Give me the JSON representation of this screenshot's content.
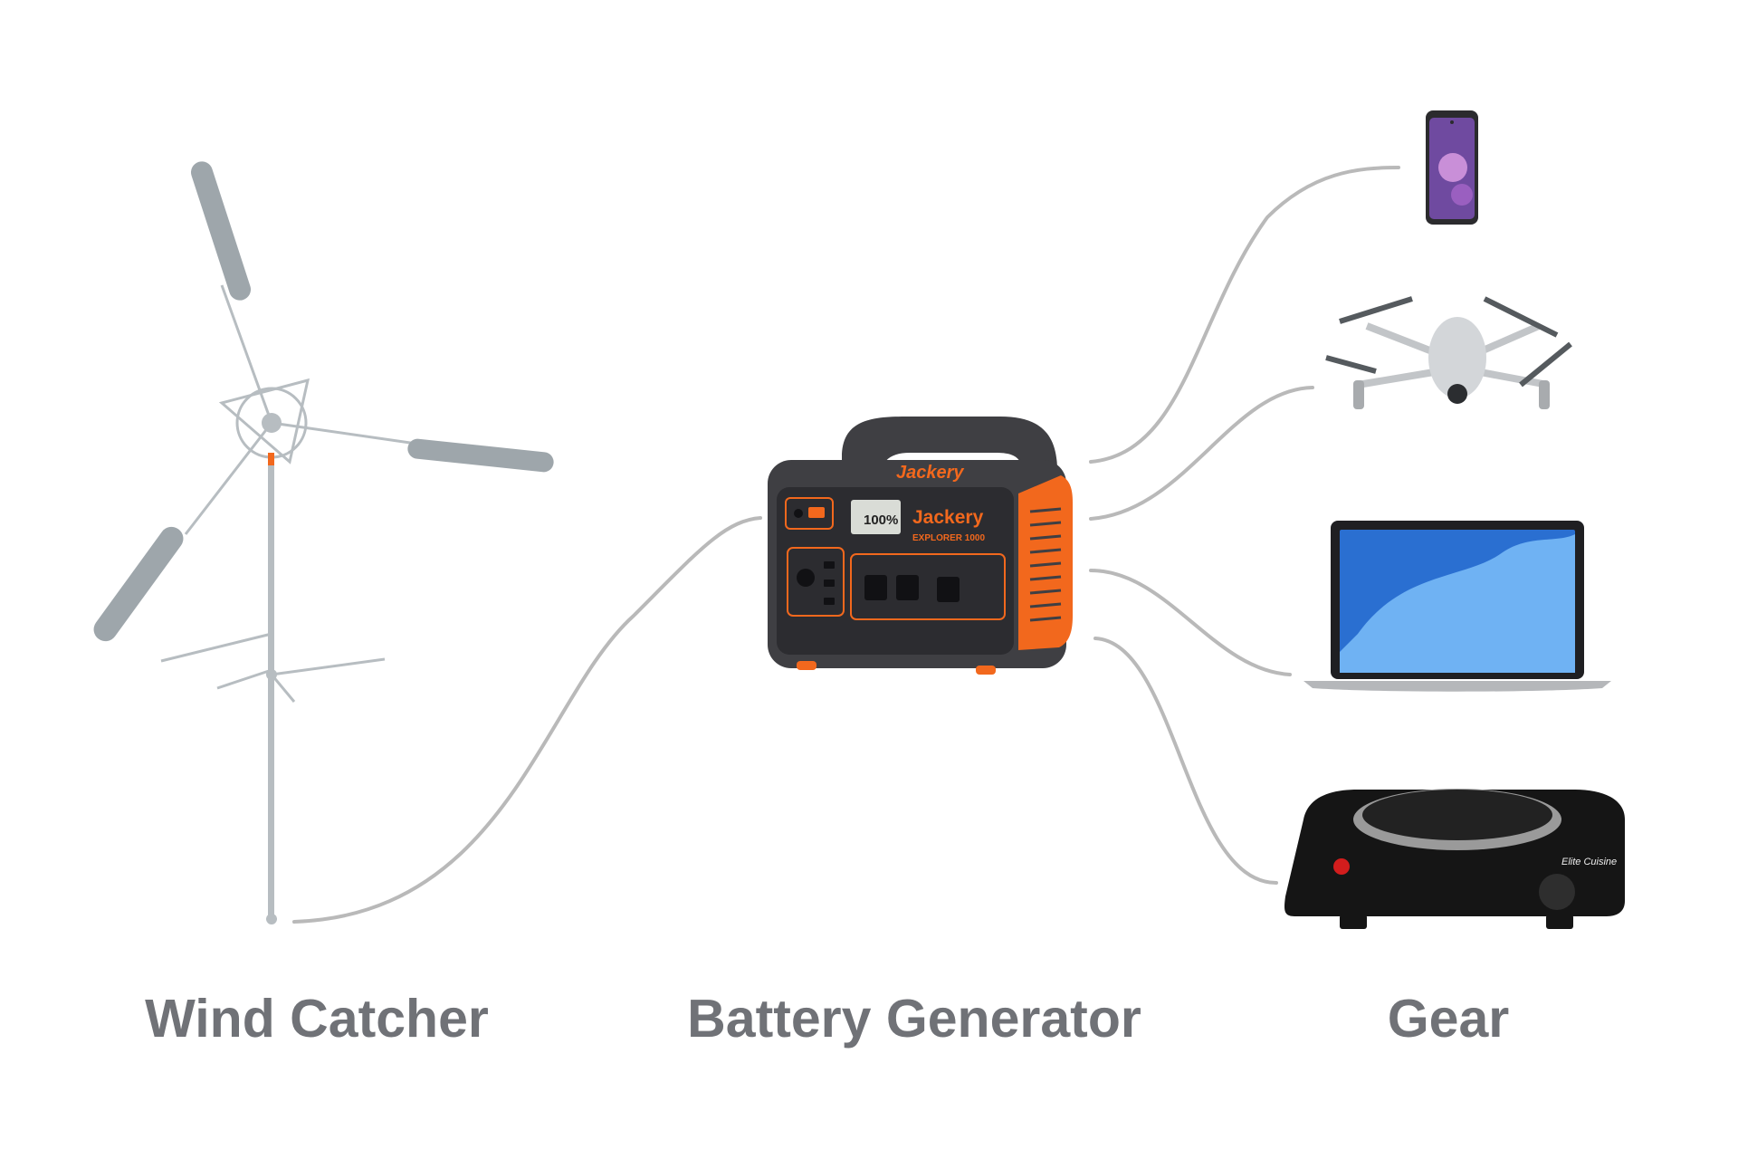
{
  "colors": {
    "background": "#ffffff",
    "label_text": "#707277",
    "connector": "#b9b9b9",
    "generator_body": "#3f3f43",
    "generator_panel": "#2c2c30",
    "generator_accent": "#f2681d",
    "turbine_structure": "#b7bdc1",
    "turbine_blade": "#9ea6ab",
    "phone_screen": "#6f4aa0",
    "laptop_screen": "#2a6fd1",
    "hotplate_body": "#151515"
  },
  "stages": {
    "wind_catcher": {
      "label": "Wind Catcher",
      "icon": "wind-turbine-icon"
    },
    "battery_generator": {
      "label": "Battery Generator",
      "icon": "portable-power-station-icon",
      "brand": "Jackery",
      "model": "EXPLORER 1000",
      "display_reading": "100%"
    },
    "gear": {
      "label": "Gear",
      "devices": [
        {
          "name": "smartphone",
          "icon": "smartphone-icon"
        },
        {
          "name": "drone",
          "icon": "drone-icon"
        },
        {
          "name": "laptop",
          "icon": "laptop-icon"
        },
        {
          "name": "hot plate",
          "icon": "hot-plate-icon",
          "brand": "Elite Cuisine"
        }
      ]
    }
  }
}
